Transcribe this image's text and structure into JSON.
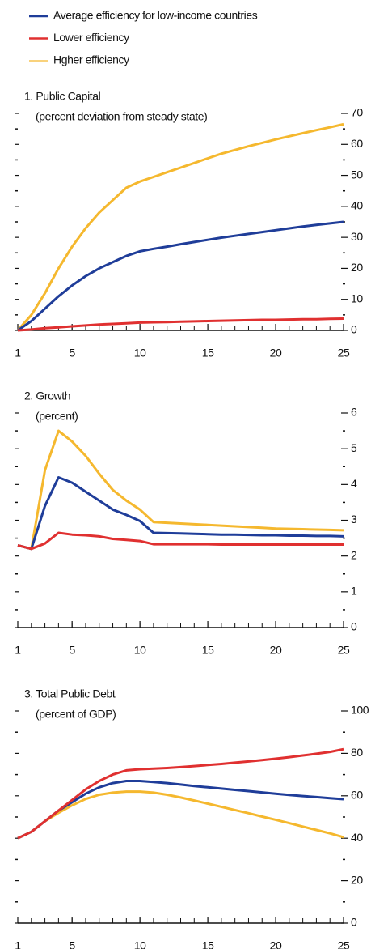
{
  "legend": [
    {
      "name": "Average efficiency for low-income countries",
      "color": "#1f3d99"
    },
    {
      "name": "Lower efficiency",
      "color": "#e03030"
    },
    {
      "name": "Hgher efficiency",
      "color": "#f5b82e"
    }
  ],
  "chart_data": [
    {
      "type": "line",
      "title": "1. Public Capital",
      "subtitle": "(percent deviation from steady state)",
      "x": [
        1,
        2,
        3,
        4,
        5,
        6,
        7,
        8,
        9,
        10,
        11,
        12,
        13,
        14,
        15,
        16,
        17,
        18,
        19,
        20,
        21,
        22,
        23,
        24,
        25
      ],
      "xlim": [
        1,
        25
      ],
      "xticks": [
        1,
        5,
        10,
        15,
        20,
        25
      ],
      "ylim": [
        0,
        70
      ],
      "yticks": [
        0,
        10,
        20,
        30,
        40,
        50,
        60,
        70
      ],
      "series": [
        {
          "color": "#f5b82e",
          "values": [
            0,
            5,
            12,
            20,
            27,
            33,
            38,
            42,
            46,
            48,
            49.5,
            51,
            52.5,
            54,
            55.5,
            57,
            58.2,
            59.4,
            60.5,
            61.6,
            62.6,
            63.6,
            64.6,
            65.5,
            66.5
          ]
        },
        {
          "color": "#1f3d99",
          "values": [
            0,
            3,
            7,
            11,
            14.5,
            17.5,
            20,
            22,
            24,
            25.5,
            26.3,
            27,
            27.8,
            28.5,
            29.2,
            29.9,
            30.5,
            31.1,
            31.7,
            32.3,
            32.9,
            33.5,
            34,
            34.5,
            35
          ]
        },
        {
          "color": "#e03030",
          "values": [
            0,
            0.3,
            0.7,
            1,
            1.3,
            1.6,
            1.9,
            2.1,
            2.3,
            2.5,
            2.6,
            2.7,
            2.8,
            2.9,
            3,
            3.1,
            3.2,
            3.3,
            3.4,
            3.4,
            3.5,
            3.6,
            3.6,
            3.7,
            3.8
          ]
        }
      ]
    },
    {
      "type": "line",
      "title": "2. Growth",
      "subtitle": "(percent)",
      "x": [
        1,
        2,
        3,
        4,
        5,
        6,
        7,
        8,
        9,
        10,
        11,
        12,
        13,
        14,
        15,
        16,
        17,
        18,
        19,
        20,
        21,
        22,
        23,
        24,
        25
      ],
      "xlim": [
        1,
        25
      ],
      "xticks": [
        1,
        5,
        10,
        15,
        20,
        25
      ],
      "ylim": [
        0,
        6
      ],
      "yticks": [
        0,
        1,
        2,
        3,
        4,
        5,
        6
      ],
      "series": [
        {
          "color": "#f5b82e",
          "values": [
            2.3,
            2.2,
            4.4,
            5.5,
            5.2,
            4.8,
            4.3,
            3.85,
            3.55,
            3.3,
            2.95,
            2.93,
            2.91,
            2.89,
            2.87,
            2.85,
            2.83,
            2.81,
            2.79,
            2.77,
            2.76,
            2.75,
            2.74,
            2.73,
            2.72
          ]
        },
        {
          "color": "#1f3d99",
          "values": [
            2.3,
            2.2,
            3.4,
            4.2,
            4.05,
            3.8,
            3.55,
            3.3,
            3.15,
            2.98,
            2.65,
            2.64,
            2.63,
            2.62,
            2.61,
            2.6,
            2.6,
            2.59,
            2.58,
            2.58,
            2.57,
            2.57,
            2.56,
            2.56,
            2.55
          ]
        },
        {
          "color": "#e03030",
          "values": [
            2.3,
            2.2,
            2.35,
            2.65,
            2.6,
            2.58,
            2.55,
            2.48,
            2.45,
            2.42,
            2.33,
            2.33,
            2.33,
            2.33,
            2.33,
            2.32,
            2.32,
            2.32,
            2.32,
            2.32,
            2.32,
            2.32,
            2.32,
            2.32,
            2.32
          ]
        }
      ]
    },
    {
      "type": "line",
      "title": "3. Total Public Debt",
      "subtitle": "(percent of GDP)",
      "x": [
        1,
        2,
        3,
        4,
        5,
        6,
        7,
        8,
        9,
        10,
        11,
        12,
        13,
        14,
        15,
        16,
        17,
        18,
        19,
        20,
        21,
        22,
        23,
        24,
        25
      ],
      "xlim": [
        1,
        25
      ],
      "xticks": [
        1,
        5,
        10,
        15,
        20,
        25
      ],
      "ylim": [
        0,
        100
      ],
      "yticks": [
        0,
        20,
        40,
        60,
        80,
        100
      ],
      "series": [
        {
          "color": "#f5b82e",
          "values": [
            40,
            43,
            48,
            52,
            55.5,
            58.5,
            60.5,
            61.5,
            62,
            62,
            61.5,
            60.5,
            59.2,
            57.8,
            56.3,
            54.8,
            53.3,
            51.8,
            50.2,
            48.7,
            47.1,
            45.5,
            43.9,
            42.3,
            40.5
          ]
        },
        {
          "color": "#1f3d99",
          "values": [
            40,
            43,
            48,
            53,
            57,
            61,
            64,
            66,
            67,
            67,
            66.5,
            66,
            65.3,
            64.6,
            64,
            63.4,
            62.8,
            62.2,
            61.6,
            61,
            60.4,
            59.9,
            59.4,
            58.9,
            58.4
          ]
        },
        {
          "color": "#e03030",
          "values": [
            40,
            43,
            48,
            53,
            58,
            63,
            67,
            70,
            72,
            72.5,
            72.8,
            73.1,
            73.5,
            74,
            74.5,
            75,
            75.6,
            76.2,
            76.8,
            77.5,
            78.2,
            79,
            79.8,
            80.7,
            82
          ]
        }
      ]
    }
  ]
}
